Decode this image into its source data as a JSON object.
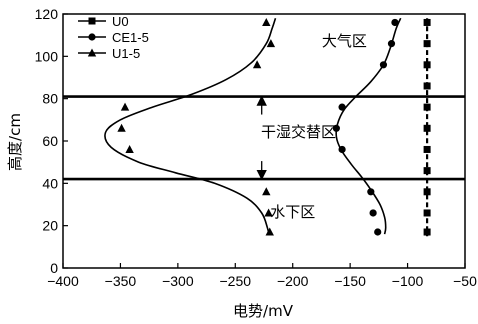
{
  "chart_data": {
    "type": "scatter",
    "xlabel": "电势/mV",
    "ylabel": "高度/cm",
    "xlim": [
      -400,
      -50
    ],
    "ylim": [
      0,
      120
    ],
    "xticks": [
      -400,
      -350,
      -300,
      -250,
      -200,
      -150,
      -100,
      -50
    ],
    "yticks": [
      0,
      20,
      40,
      60,
      80,
      100,
      120
    ],
    "grid": false,
    "legend_position": "top-left",
    "horizontal_lines": [
      81,
      42
    ],
    "annotations": [
      {
        "text": "大气区",
        "x": -155,
        "y": 105
      },
      {
        "text": "干湿交替区",
        "x": -195,
        "y": 62
      },
      {
        "text": "水下区",
        "x": -200,
        "y": 24
      }
    ],
    "vertical_arrow_x": -227,
    "series": [
      {
        "name": "U0",
        "marker": "square",
        "points": [
          [
            -83,
            116
          ],
          [
            -83,
            106
          ],
          [
            -83,
            96
          ],
          [
            -83,
            86
          ],
          [
            -83,
            76
          ],
          [
            -83,
            66
          ],
          [
            -83,
            56
          ],
          [
            -83,
            46
          ],
          [
            -83,
            36
          ],
          [
            -83,
            26
          ],
          [
            -83,
            17
          ]
        ],
        "curve": [
          [
            -83,
            118
          ],
          [
            -83,
            15
          ]
        ]
      },
      {
        "name": "CE1-5",
        "marker": "circle",
        "points": [
          [
            -111,
            116
          ],
          [
            -114,
            106
          ],
          [
            -121,
            96
          ],
          [
            -157,
            76
          ],
          [
            -162,
            66
          ],
          [
            -157,
            56
          ],
          [
            -132,
            36
          ],
          [
            -130,
            26
          ],
          [
            -126,
            17
          ]
        ],
        "curve": [
          [
            -106,
            118
          ],
          [
            -110,
            113
          ],
          [
            -115,
            104
          ],
          [
            -121,
            96
          ],
          [
            -132,
            88
          ],
          [
            -145,
            81
          ],
          [
            -155,
            75
          ],
          [
            -161,
            68
          ],
          [
            -162,
            62
          ],
          [
            -158,
            56
          ],
          [
            -149,
            49
          ],
          [
            -140,
            43
          ],
          [
            -132,
            37
          ],
          [
            -124,
            30
          ],
          [
            -120,
            24
          ],
          [
            -119,
            19
          ],
          [
            -120,
            16
          ]
        ]
      },
      {
        "name": "U1-5",
        "marker": "triangle",
        "points": [
          [
            -223,
            116
          ],
          [
            -219,
            106
          ],
          [
            -231,
            96
          ],
          [
            -346,
            76
          ],
          [
            -349,
            66
          ],
          [
            -342,
            56
          ],
          [
            -223,
            36
          ],
          [
            -221,
            26
          ],
          [
            -220,
            17
          ]
        ],
        "curve": [
          [
            -215,
            118
          ],
          [
            -218,
            113
          ],
          [
            -223,
            106
          ],
          [
            -236,
            97
          ],
          [
            -258,
            89
          ],
          [
            -288,
            82
          ],
          [
            -322,
            76
          ],
          [
            -350,
            70
          ],
          [
            -363,
            64
          ],
          [
            -358,
            57
          ],
          [
            -334,
            50
          ],
          [
            -302,
            45
          ],
          [
            -268,
            40
          ],
          [
            -240,
            33
          ],
          [
            -227,
            26
          ],
          [
            -222,
            19
          ],
          [
            -221,
            16
          ]
        ]
      }
    ]
  }
}
